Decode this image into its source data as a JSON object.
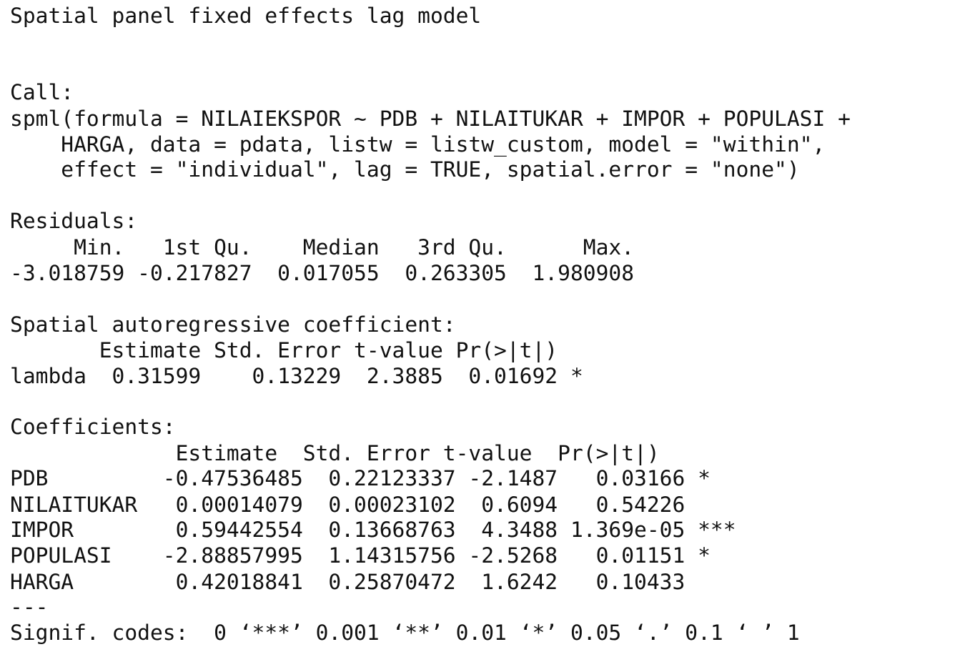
{
  "title": "Spatial panel fixed effects lag model",
  "call": {
    "label": "Call:",
    "lines": [
      "spml(formula = NILAIEKSPOR ~ PDB + NILAITUKAR + IMPOR + POPULASI +",
      "    HARGA, data = pdata, listw = listw_custom, model = \"within\",",
      "    effect = \"individual\", lag = TRUE, spatial.error = \"none\")"
    ]
  },
  "residuals": {
    "label": "Residuals:",
    "header": "     Min.   1st Qu.    Median   3rd Qu.      Max. ",
    "values": "-3.018759 -0.217827  0.017055  0.263305  1.980908 "
  },
  "spatial_coefficient": {
    "label": "Spatial autoregressive coefficient:",
    "header": "       Estimate Std. Error t-value Pr(>|t|)  ",
    "row": "lambda  0.31599    0.13229  2.3885  0.01692 *"
  },
  "coefficients": {
    "label": "Coefficients:",
    "header": "             Estimate  Std. Error t-value  Pr(>|t|)    ",
    "rows": [
      "PDB         -0.47536485  0.22123337 -2.1487   0.03166 *  ",
      "NILAITUKAR   0.00014079  0.00023102  0.6094   0.54226    ",
      "IMPOR        0.59442554  0.13668763  4.3488 1.369e-05 ***",
      "POPULASI    -2.88857995  1.14315756 -2.5268   0.01151 *  ",
      "HARGA        0.42018841  0.25870472  1.6242   0.10433    "
    ]
  },
  "separator": "---",
  "signif_codes": "Signif. codes:  0 ‘***’ 0.001 ‘**’ 0.01 ‘*’ 0.05 ‘.’ 0.1 ‘ ’ 1"
}
